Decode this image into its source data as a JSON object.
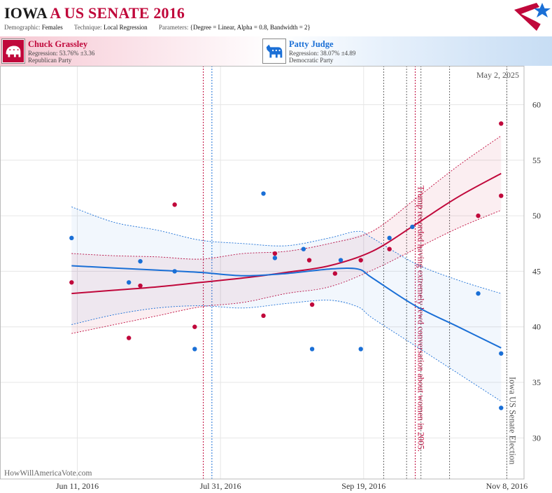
{
  "header": {
    "title_state": "IOWA",
    "title_event": "A US SENATE 2016",
    "params": [
      {
        "key": "Demographic:",
        "value": "Females"
      },
      {
        "key": "Technique:",
        "value": "Local Regression"
      },
      {
        "key": "Parameters:",
        "value": "{Degree = Linear, Alpha = 0.8, Bandwidth = 2}"
      }
    ]
  },
  "logo": {
    "icon": "star-flag-logo",
    "colors": {
      "red": "#c0083b",
      "blue": "#1a6fd6"
    }
  },
  "candidates": [
    {
      "name": "Chuck Grassley",
      "regression": "Regression: 53.76% ±3.36",
      "party": "Republican Party",
      "icon": "elephant-icon",
      "color": "#c0083b"
    },
    {
      "name": "Patty Judge",
      "regression": "Regression: 38.07% ±4.89",
      "party": "Democratic Party",
      "icon": "donkey-icon",
      "color": "#1a6fd6"
    }
  ],
  "chart_data": {
    "type": "scatter",
    "date_label": "May 2, 2025",
    "watermark": "HowWillAmericaVote.com",
    "x_range": [
      "2016-05-15",
      "2016-11-14"
    ],
    "ylim": [
      26.3,
      63.5
    ],
    "yticks": [
      30,
      35,
      40,
      45,
      50,
      55,
      60
    ],
    "xticks": [
      {
        "date": "2016-06-11",
        "label": "Jun 11, 2016"
      },
      {
        "date": "2016-07-31",
        "label": "Jul 31, 2016"
      },
      {
        "date": "2016-09-19",
        "label": "Sep 19, 2016"
      },
      {
        "date": "2016-11-08",
        "label": "Nov 8, 2016"
      }
    ],
    "x_gridlines": [
      "2016-06-11",
      "2016-07-31",
      "2016-09-19",
      "2016-11-08"
    ],
    "y_gridlines": [
      30,
      35,
      40,
      45,
      50,
      55,
      60
    ],
    "events": [
      {
        "date": "2016-07-25",
        "color": "#c0083b",
        "label": ""
      },
      {
        "date": "2016-07-28",
        "color": "#1a6fd6",
        "label": ""
      },
      {
        "date": "2016-09-26",
        "color": "#666666",
        "label": ""
      },
      {
        "date": "2016-10-04",
        "color": "#666666",
        "label": ""
      },
      {
        "date": "2016-10-07",
        "color": "#c0083b",
        "label": "Trump recorded having extremely lewd conversation about women in 2005."
      },
      {
        "date": "2016-10-09",
        "color": "#666666",
        "label": ""
      },
      {
        "date": "2016-10-19",
        "color": "#666666",
        "label": ""
      },
      {
        "date": "2016-11-08",
        "color": "#666666",
        "label": "Iowa US Senate Election"
      }
    ],
    "series": [
      {
        "name": "Chuck Grassley",
        "color": "#c0083b",
        "band_fill": "rgba(192,8,59,0.07)",
        "points": [
          [
            "2016-06-09",
            44
          ],
          [
            "2016-06-29",
            39
          ],
          [
            "2016-07-03",
            43.7
          ],
          [
            "2016-07-15",
            51
          ],
          [
            "2016-07-22",
            40
          ],
          [
            "2016-08-15",
            41
          ],
          [
            "2016-08-19",
            46.6
          ],
          [
            "2016-08-31",
            46
          ],
          [
            "2016-09-01",
            42
          ],
          [
            "2016-09-09",
            44.8
          ],
          [
            "2016-09-18",
            46
          ],
          [
            "2016-09-28",
            47
          ],
          [
            "2016-10-29",
            50
          ],
          [
            "2016-11-06",
            58.3
          ],
          [
            "2016-11-06",
            51.8
          ]
        ],
        "fit": [
          [
            "2016-06-09",
            43.0
          ],
          [
            "2016-06-24",
            43.3
          ],
          [
            "2016-07-09",
            43.6
          ],
          [
            "2016-07-24",
            44.0
          ],
          [
            "2016-08-08",
            44.4
          ],
          [
            "2016-08-23",
            44.9
          ],
          [
            "2016-09-07",
            45.5
          ],
          [
            "2016-09-22",
            46.8
          ],
          [
            "2016-10-07",
            49.2
          ],
          [
            "2016-10-22",
            51.7
          ],
          [
            "2016-11-06",
            53.8
          ]
        ],
        "upper": [
          [
            "2016-06-09",
            46.6
          ],
          [
            "2016-06-24",
            46.4
          ],
          [
            "2016-07-09",
            46.3
          ],
          [
            "2016-07-24",
            46.1
          ],
          [
            "2016-08-08",
            46.6
          ],
          [
            "2016-08-23",
            46.8
          ],
          [
            "2016-09-07",
            47.5
          ],
          [
            "2016-09-22",
            48.6
          ],
          [
            "2016-10-07",
            51.5
          ],
          [
            "2016-10-22",
            54.5
          ],
          [
            "2016-11-06",
            57.2
          ]
        ],
        "lower": [
          [
            "2016-06-09",
            39.4
          ],
          [
            "2016-06-24",
            40.2
          ],
          [
            "2016-07-09",
            41.0
          ],
          [
            "2016-07-24",
            41.8
          ],
          [
            "2016-08-08",
            42.2
          ],
          [
            "2016-08-23",
            43.0
          ],
          [
            "2016-09-07",
            43.6
          ],
          [
            "2016-09-22",
            45.1
          ],
          [
            "2016-10-07",
            47.0
          ],
          [
            "2016-10-22",
            48.9
          ],
          [
            "2016-11-06",
            50.5
          ]
        ]
      },
      {
        "name": "Patty Judge",
        "color": "#1a6fd6",
        "band_fill": "rgba(26,111,214,0.06)",
        "points": [
          [
            "2016-06-09",
            48
          ],
          [
            "2016-06-29",
            44
          ],
          [
            "2016-07-03",
            45.9
          ],
          [
            "2016-07-15",
            45
          ],
          [
            "2016-07-22",
            38
          ],
          [
            "2016-08-15",
            52
          ],
          [
            "2016-08-19",
            46.2
          ],
          [
            "2016-08-29",
            47
          ],
          [
            "2016-09-01",
            38
          ],
          [
            "2016-09-11",
            46
          ],
          [
            "2016-09-18",
            38
          ],
          [
            "2016-09-28",
            48
          ],
          [
            "2016-10-06",
            49
          ],
          [
            "2016-10-29",
            43
          ],
          [
            "2016-11-06",
            37.6
          ],
          [
            "2016-11-06",
            32.7
          ]
        ],
        "fit": [
          [
            "2016-06-09",
            45.5
          ],
          [
            "2016-06-24",
            45.3
          ],
          [
            "2016-07-09",
            45.1
          ],
          [
            "2016-07-24",
            44.9
          ],
          [
            "2016-08-08",
            44.6
          ],
          [
            "2016-08-23",
            44.8
          ],
          [
            "2016-09-07",
            45.2
          ],
          [
            "2016-09-17",
            45.2
          ],
          [
            "2016-09-22",
            44.4
          ],
          [
            "2016-10-07",
            41.9
          ],
          [
            "2016-10-22",
            40.0
          ],
          [
            "2016-11-06",
            38.1
          ]
        ],
        "upper": [
          [
            "2016-06-09",
            50.8
          ],
          [
            "2016-06-24",
            49.4
          ],
          [
            "2016-07-09",
            48.7
          ],
          [
            "2016-07-24",
            47.8
          ],
          [
            "2016-08-08",
            47.5
          ],
          [
            "2016-08-23",
            47.3
          ],
          [
            "2016-09-07",
            48.0
          ],
          [
            "2016-09-17",
            48.6
          ],
          [
            "2016-09-22",
            48.0
          ],
          [
            "2016-10-07",
            45.7
          ],
          [
            "2016-10-22",
            44.2
          ],
          [
            "2016-11-06",
            43.0
          ]
        ],
        "lower": [
          [
            "2016-06-09",
            40.2
          ],
          [
            "2016-06-24",
            41.1
          ],
          [
            "2016-07-09",
            41.7
          ],
          [
            "2016-07-24",
            41.9
          ],
          [
            "2016-08-08",
            41.7
          ],
          [
            "2016-08-23",
            42.1
          ],
          [
            "2016-09-07",
            42.4
          ],
          [
            "2016-09-17",
            41.8
          ],
          [
            "2016-09-22",
            40.8
          ],
          [
            "2016-10-07",
            38.3
          ],
          [
            "2016-10-22",
            35.8
          ],
          [
            "2016-11-06",
            33.3
          ]
        ]
      }
    ]
  }
}
